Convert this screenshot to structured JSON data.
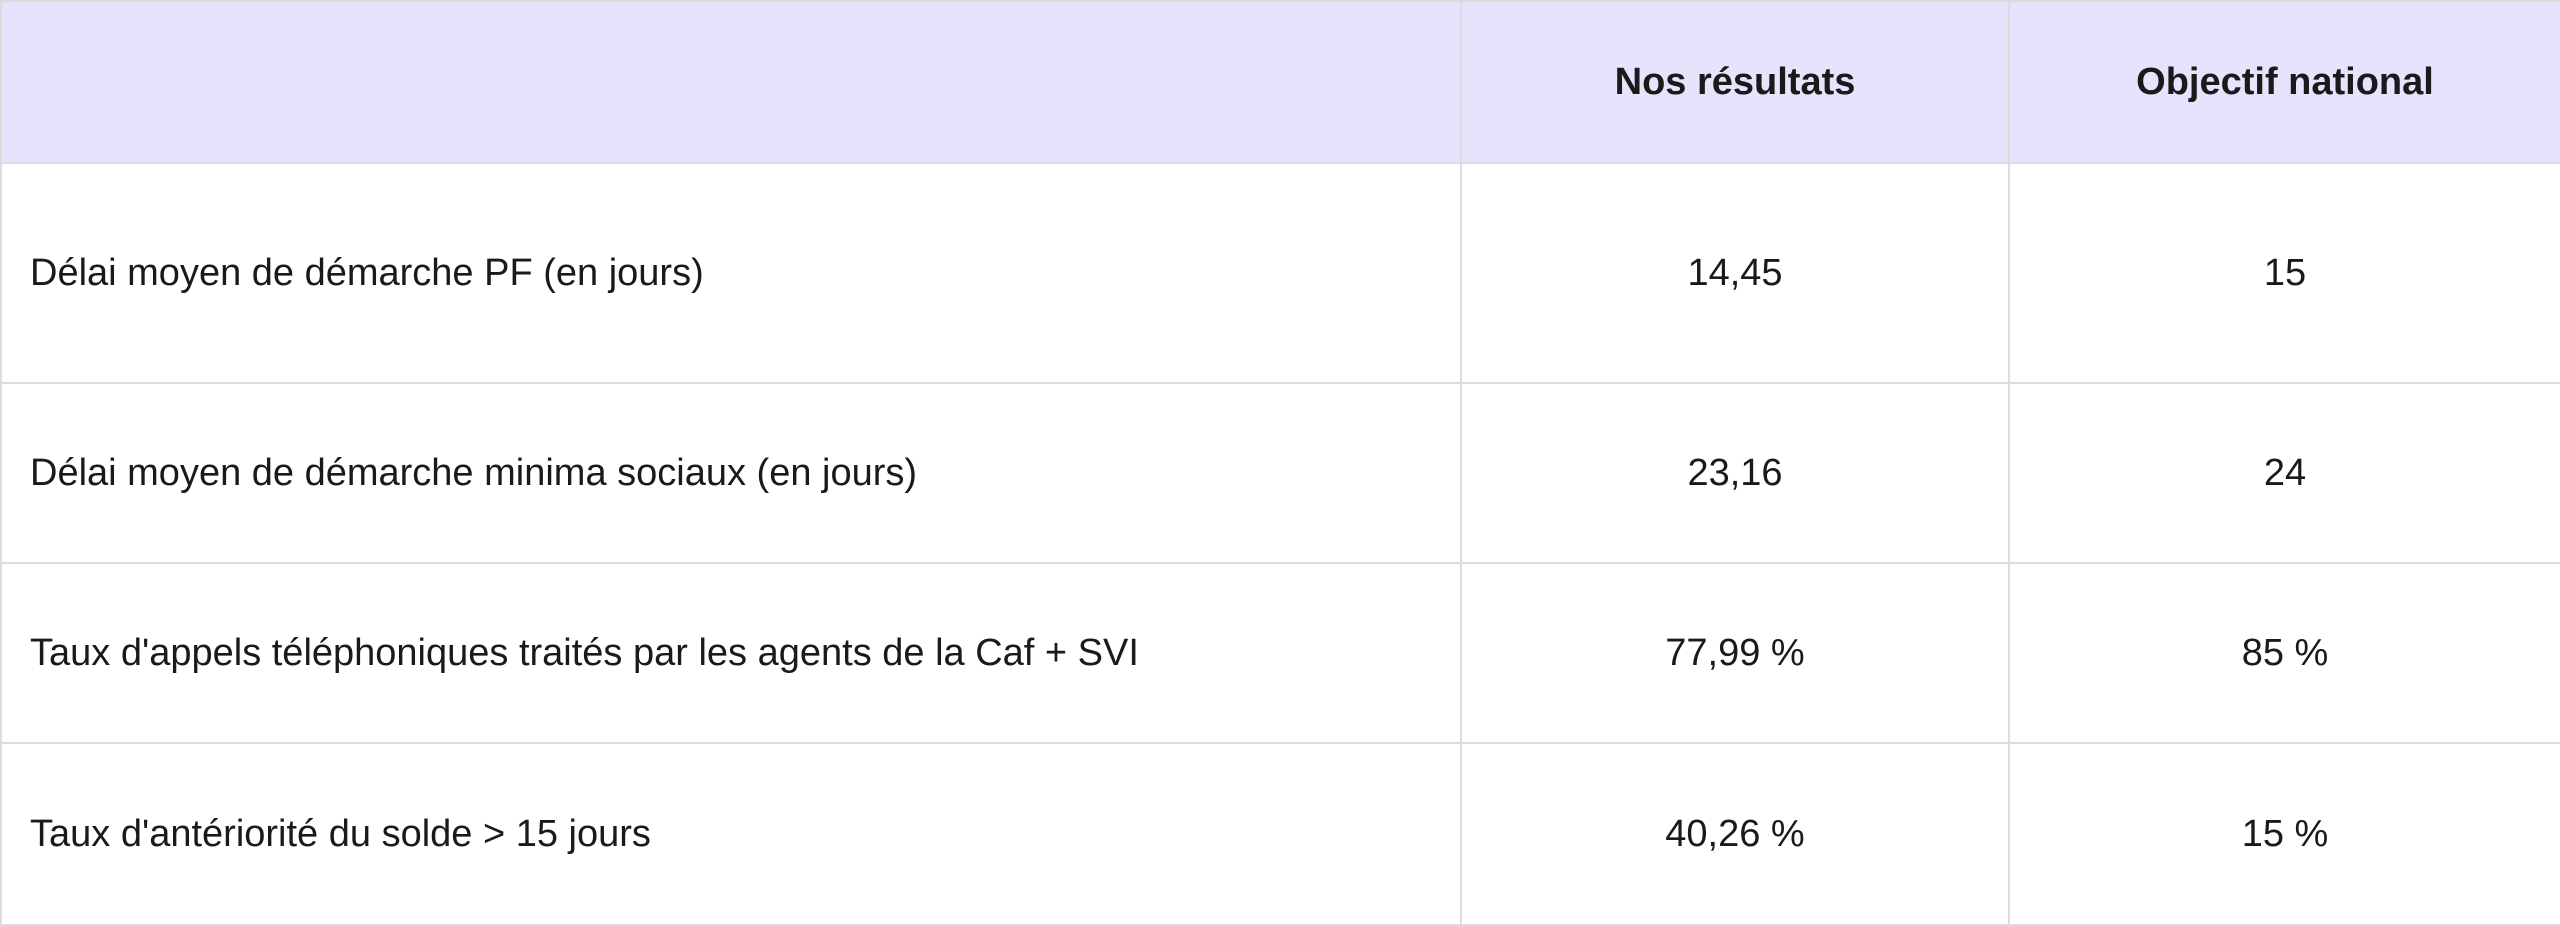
{
  "table": {
    "headers": [
      "",
      "Nos résultats",
      "Objectif national"
    ],
    "rows": [
      {
        "label": "Délai moyen de démarche PF (en jours)",
        "result": "14,45",
        "target": "15"
      },
      {
        "label": "Délai moyen de démarche minima sociaux (en jours)",
        "result": "23,16",
        "target": "24"
      },
      {
        "label": "Taux d'appels téléphoniques traités par les agents de la Caf + SVI",
        "result": "77,99 %",
        "target": "85 %"
      },
      {
        "label": "Taux d'antériorité du solde > 15 jours",
        "result": "40,26 %",
        "target": "15 %"
      }
    ]
  },
  "colors": {
    "header_background": "#e6e3fd",
    "border": "#dcdcdc",
    "text": "#1a1a1a"
  }
}
